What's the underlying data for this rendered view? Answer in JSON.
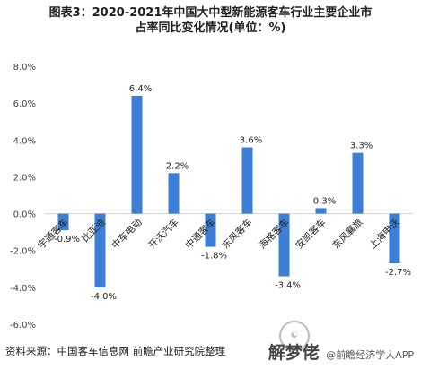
{
  "title_line1": "图表3：2020-2021年中国大中型新能源客车行业主要企业市",
  "title_line2": "占率同比变化情况(单位：%)",
  "source": "资料来源：中国客车信息网 前瞻产业研究院整理",
  "watermark": {
    "brand": "解梦佬",
    "sub": "@前瞻经济学人APP"
  },
  "colors": {
    "bar": "#3d7fd6",
    "axis": "#d0d0d0",
    "text": "#333333"
  },
  "chart_data": {
    "type": "bar",
    "categories": [
      "宇通客车",
      "比亚迪",
      "中车电动",
      "开沃汽车",
      "中通客车",
      "东风客车",
      "海格客车",
      "安凯客车",
      "东风襄旅",
      "上海申沃"
    ],
    "values": [
      -0.9,
      -4.0,
      6.4,
      2.2,
      -1.8,
      3.6,
      -3.4,
      0.3,
      3.3,
      -2.7
    ],
    "value_labels": [
      "-0.9%",
      "-4.0%",
      "6.4%",
      "2.2%",
      "-1.8%",
      "3.6%",
      "-3.4%",
      "0.3%",
      "3.3%",
      "-2.7%"
    ],
    "y_ticks": [
      8.0,
      6.0,
      4.0,
      2.0,
      0.0,
      -2.0,
      -4.0,
      -6.0
    ],
    "y_tick_labels": [
      "8.0%",
      "6.0%",
      "4.0%",
      "2.0%",
      "0.0%",
      "-2.0%",
      "-4.0%",
      "-6.0%"
    ],
    "ylim": [
      -6.0,
      8.0
    ],
    "title": "",
    "xlabel": "",
    "ylabel": "",
    "grid": false,
    "legend": "none"
  }
}
